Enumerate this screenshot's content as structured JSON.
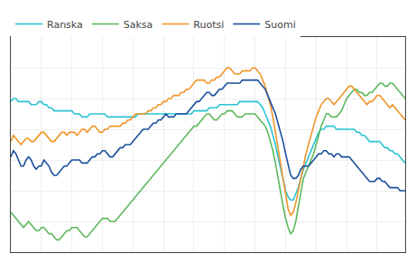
{
  "chart_data": {
    "type": "line",
    "x": [
      0,
      1,
      2,
      3,
      4,
      5,
      6,
      7,
      8,
      9,
      10,
      11,
      12,
      13,
      14,
      15,
      16,
      17,
      18,
      19,
      20,
      21,
      22,
      23,
      24,
      25,
      26,
      27,
      28,
      29,
      30,
      31,
      32,
      33,
      34,
      35,
      36,
      37,
      38,
      39,
      40,
      41,
      42,
      43,
      44,
      45,
      46,
      47,
      48,
      49,
      50,
      51,
      52,
      53,
      54,
      55,
      56,
      57,
      58,
      59,
      60,
      61,
      62,
      63,
      64,
      65,
      66,
      67,
      68,
      69,
      70,
      71,
      72,
      73,
      74,
      75,
      76,
      77,
      78,
      79,
      80,
      81,
      82,
      83,
      84,
      85,
      86,
      87,
      88,
      89,
      90,
      91,
      92,
      93,
      94,
      95,
      96,
      97,
      98,
      99,
      100,
      101,
      102,
      103,
      104,
      105,
      106,
      107,
      108,
      109,
      110,
      111,
      112,
      113,
      114,
      115,
      116,
      117,
      118,
      119,
      120,
      121,
      122,
      123,
      124,
      125,
      126,
      127,
      128,
      129,
      130,
      131,
      132,
      133,
      134,
      135,
      136,
      137,
      138,
      139,
      140,
      141,
      142,
      143,
      144,
      145,
      146,
      147,
      148,
      149,
      150,
      151,
      152,
      153,
      154,
      155
    ],
    "series": [
      {
        "name": "Ranska",
        "color": "#29c4d4",
        "values": [
          101,
          102,
          102,
          101,
          101,
          101,
          101,
          101,
          100,
          100,
          100,
          101,
          101,
          100,
          100,
          99,
          99,
          98,
          98,
          98,
          98,
          98,
          98,
          98,
          98,
          97,
          97,
          97,
          96,
          96,
          96,
          97,
          97,
          97,
          97,
          97,
          97,
          97,
          96,
          96,
          96,
          96,
          96,
          96,
          96,
          96,
          96,
          96,
          96,
          96,
          97,
          97,
          97,
          97,
          97,
          97,
          97,
          97,
          97,
          97,
          97,
          97,
          97,
          97,
          97,
          97,
          97,
          97,
          97,
          97,
          97,
          97,
          98,
          98,
          98,
          98,
          98,
          98,
          99,
          99,
          99,
          99,
          100,
          100,
          100,
          100,
          100,
          100,
          100,
          100,
          101,
          101,
          101,
          101,
          101,
          101,
          101,
          101,
          100,
          99,
          97,
          95,
          93,
          90,
          87,
          83,
          79,
          76,
          72,
          70,
          69,
          69,
          71,
          73,
          76,
          79,
          81,
          83,
          85,
          87,
          89,
          91,
          92,
          92,
          93,
          93,
          93,
          93,
          92,
          92,
          92,
          92,
          92,
          92,
          92,
          92,
          91,
          91,
          90,
          90,
          89,
          88,
          88,
          88,
          88,
          88,
          87,
          86,
          86,
          85,
          85,
          84,
          84,
          83,
          82,
          81
        ]
      },
      {
        "name": "Saksa",
        "color": "#5cb85c",
        "values": [
          65,
          64,
          63,
          62,
          61,
          60,
          61,
          62,
          61,
          60,
          59,
          59,
          60,
          60,
          59,
          58,
          58,
          57,
          56,
          56,
          57,
          58,
          59,
          59,
          60,
          60,
          60,
          59,
          58,
          57,
          57,
          58,
          59,
          60,
          61,
          62,
          63,
          63,
          63,
          62,
          62,
          62,
          63,
          64,
          65,
          66,
          67,
          68,
          69,
          70,
          71,
          72,
          73,
          74,
          75,
          76,
          77,
          78,
          79,
          80,
          81,
          82,
          83,
          84,
          85,
          86,
          87,
          88,
          89,
          90,
          91,
          92,
          93,
          93,
          94,
          95,
          96,
          97,
          97,
          96,
          95,
          95,
          96,
          97,
          97,
          98,
          98,
          98,
          97,
          96,
          96,
          96,
          97,
          97,
          97,
          97,
          97,
          96,
          95,
          94,
          93,
          91,
          88,
          85,
          81,
          76,
          71,
          67,
          63,
          60,
          58,
          59,
          62,
          67,
          72,
          76,
          78,
          80,
          82,
          84,
          87,
          90,
          93,
          95,
          97,
          97,
          96,
          96,
          96,
          97,
          98,
          100,
          102,
          103,
          104,
          105,
          105,
          104,
          104,
          103,
          103,
          104,
          104,
          105,
          106,
          107,
          107,
          106,
          106,
          107,
          107,
          106,
          105,
          104,
          103,
          102
        ]
      },
      {
        "name": "Ruotsi",
        "color": "#f0952a",
        "values": [
          88,
          90,
          89,
          88,
          87,
          88,
          89,
          89,
          88,
          88,
          89,
          90,
          91,
          91,
          90,
          89,
          88,
          88,
          89,
          90,
          91,
          91,
          90,
          91,
          91,
          91,
          90,
          91,
          92,
          92,
          91,
          92,
          93,
          93,
          92,
          91,
          91,
          92,
          92,
          93,
          93,
          93,
          93,
          93,
          94,
          94,
          95,
          95,
          96,
          97,
          97,
          97,
          97,
          97,
          98,
          98,
          99,
          99,
          100,
          100,
          101,
          101,
          102,
          102,
          103,
          103,
          103,
          104,
          104,
          105,
          105,
          106,
          107,
          108,
          108,
          108,
          108,
          107,
          107,
          108,
          108,
          109,
          109,
          110,
          111,
          112,
          112,
          111,
          110,
          110,
          110,
          111,
          111,
          111,
          111,
          112,
          112,
          111,
          110,
          108,
          106,
          103,
          100,
          96,
          91,
          86,
          80,
          75,
          70,
          66,
          64,
          65,
          68,
          72,
          77,
          81,
          84,
          87,
          90,
          93,
          96,
          98,
          100,
          101,
          102,
          102,
          101,
          100,
          101,
          102,
          103,
          104,
          105,
          106,
          106,
          105,
          104,
          103,
          102,
          101,
          100,
          101,
          101,
          102,
          103,
          103,
          102,
          101,
          100,
          99,
          100,
          99,
          98,
          97,
          96,
          95
        ]
      },
      {
        "name": "Suomi",
        "color": "#1a4f9c",
        "values": [
          83,
          85,
          84,
          82,
          80,
          80,
          82,
          83,
          82,
          80,
          79,
          80,
          80,
          82,
          81,
          80,
          78,
          77,
          77,
          78,
          79,
          80,
          80,
          81,
          82,
          82,
          82,
          82,
          81,
          81,
          81,
          82,
          83,
          83,
          84,
          84,
          85,
          85,
          84,
          83,
          83,
          84,
          85,
          86,
          86,
          87,
          87,
          87,
          88,
          89,
          90,
          91,
          92,
          92,
          92,
          93,
          94,
          94,
          95,
          95,
          96,
          97,
          96,
          96,
          96,
          97,
          97,
          97,
          97,
          97,
          98,
          99,
          100,
          101,
          101,
          102,
          103,
          104,
          104,
          103,
          103,
          104,
          105,
          105,
          106,
          107,
          107,
          107,
          107,
          107,
          107,
          108,
          108,
          108,
          108,
          108,
          108,
          108,
          107,
          106,
          105,
          103,
          101,
          99,
          97,
          94,
          91,
          88,
          84,
          80,
          77,
          76,
          76,
          77,
          79,
          80,
          80,
          80,
          81,
          82,
          83,
          84,
          84,
          85,
          85,
          84,
          84,
          83,
          84,
          84,
          83,
          83,
          83,
          83,
          82,
          81,
          80,
          79,
          78,
          77,
          76,
          75,
          75,
          75,
          76,
          76,
          75,
          75,
          74,
          73,
          73,
          73,
          73,
          72,
          72,
          72
        ]
      }
    ],
    "xlim": [
      0,
      155
    ],
    "xticks": [
      0,
      12,
      24,
      36,
      48,
      60,
      72,
      84,
      96,
      108,
      120,
      132,
      144
    ],
    "ylim": [
      52,
      122
    ],
    "yticks": [
      52,
      62,
      72,
      82,
      92,
      102,
      112,
      122
    ],
    "grid": true,
    "legend": "upper left",
    "tick_labels": false
  }
}
